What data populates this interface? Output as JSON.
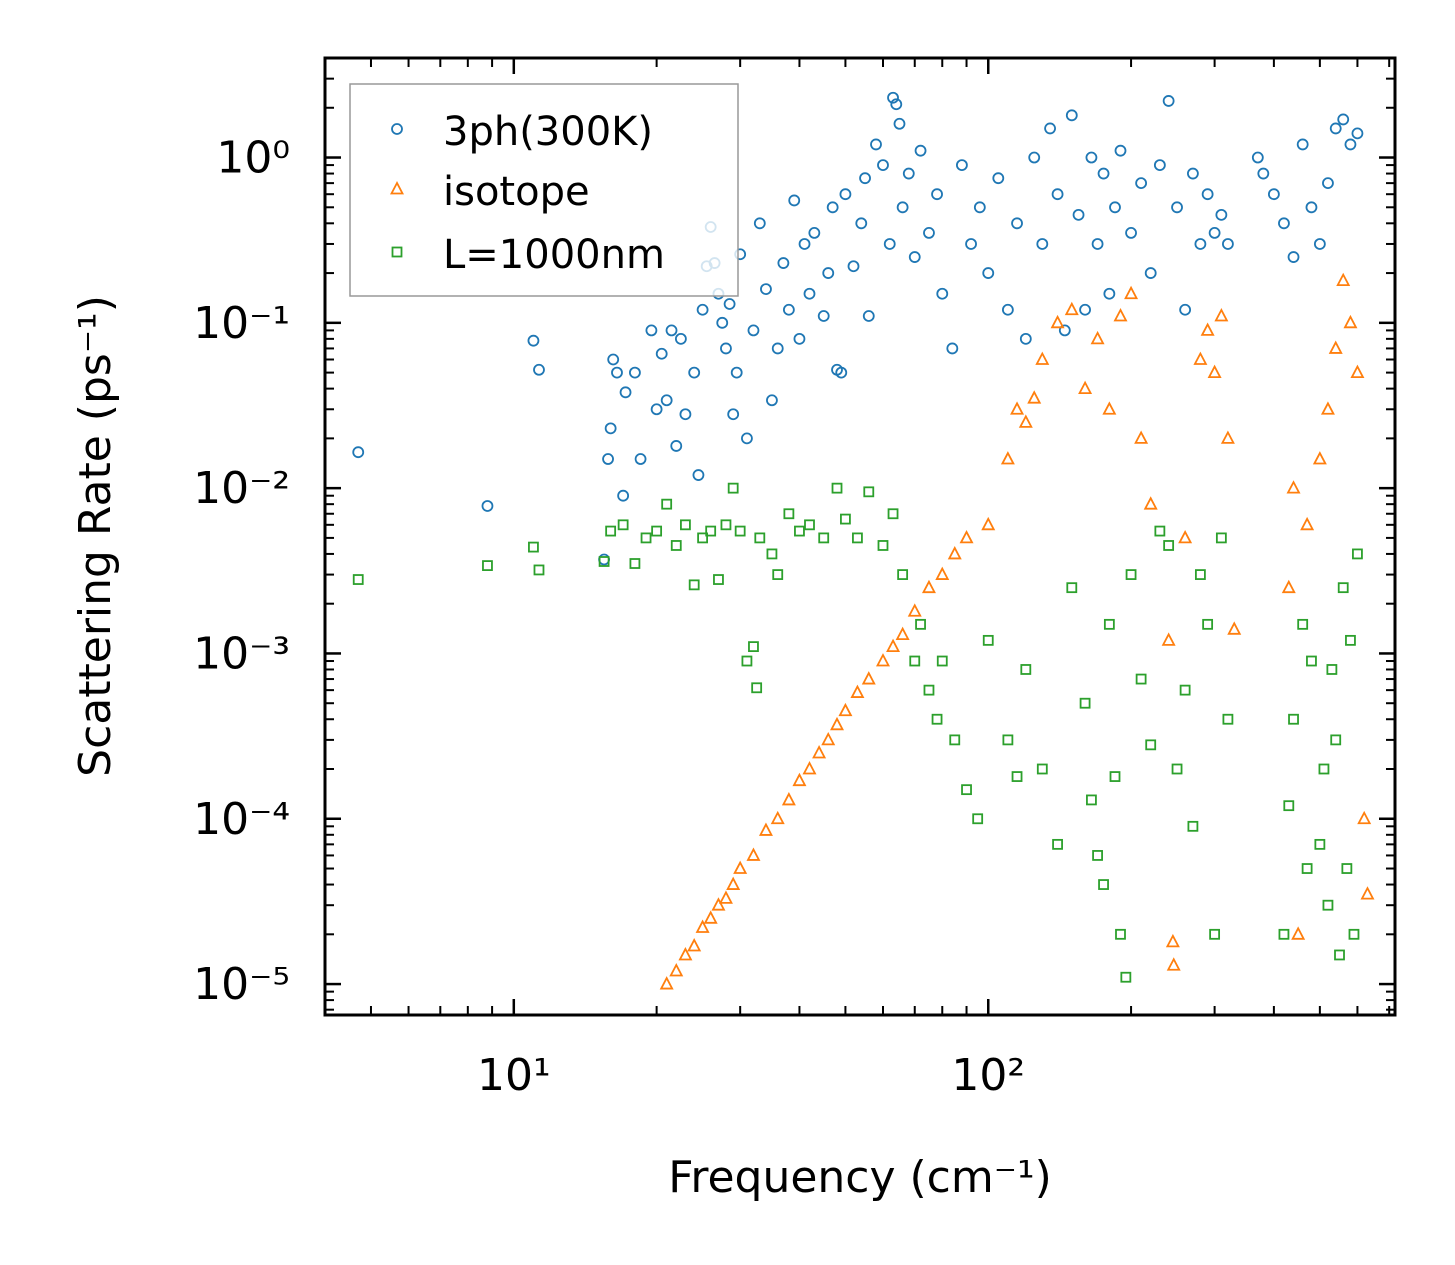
{
  "chart_data": {
    "type": "scatter",
    "xscale": "log",
    "yscale": "log",
    "xlim": [
      4,
      720
    ],
    "ylim": [
      6.5e-06,
      4.0
    ],
    "xlabel": "Frequency (cm⁻¹)",
    "ylabel": "Scattering Rate (ps⁻¹)",
    "x_ticks": [
      {
        "value": 10,
        "label": "10¹"
      },
      {
        "value": 100,
        "label": "10²"
      }
    ],
    "y_ticks": [
      {
        "value": 1,
        "label": "10⁰"
      },
      {
        "value": 0.1,
        "label": "10⁻¹"
      },
      {
        "value": 0.01,
        "label": "10⁻²"
      },
      {
        "value": 0.001,
        "label": "10⁻³"
      },
      {
        "value": 0.0001,
        "label": "10⁻⁴"
      },
      {
        "value": 1e-05,
        "label": "10⁻⁵"
      }
    ],
    "legend_position": "top-left",
    "series": [
      {
        "name": "3ph(300K)",
        "marker": "circle",
        "color": "#1f77b4",
        "points": [
          [
            4.7,
            0.0165
          ],
          [
            8.8,
            0.0078
          ],
          [
            11,
            0.078
          ],
          [
            11.3,
            0.052
          ],
          [
            15.5,
            0.0037
          ],
          [
            15.8,
            0.015
          ],
          [
            16,
            0.023
          ],
          [
            16.2,
            0.06
          ],
          [
            16.5,
            0.05
          ],
          [
            17,
            0.009
          ],
          [
            17.2,
            0.038
          ],
          [
            18,
            0.05
          ],
          [
            18.5,
            0.015
          ],
          [
            19.5,
            0.09
          ],
          [
            20,
            0.03
          ],
          [
            20.5,
            0.065
          ],
          [
            21,
            0.034
          ],
          [
            21.5,
            0.09
          ],
          [
            22,
            0.018
          ],
          [
            22.5,
            0.08
          ],
          [
            23,
            0.028
          ],
          [
            24,
            0.05
          ],
          [
            24.5,
            0.012
          ],
          [
            25,
            0.12
          ],
          [
            25.5,
            0.22
          ],
          [
            26,
            0.38
          ],
          [
            26.5,
            0.23
          ],
          [
            27,
            0.15
          ],
          [
            27.5,
            0.1
          ],
          [
            28,
            0.07
          ],
          [
            28.5,
            0.13
          ],
          [
            29,
            0.028
          ],
          [
            29.5,
            0.05
          ],
          [
            30,
            0.26
          ],
          [
            31,
            0.02
          ],
          [
            32,
            0.09
          ],
          [
            33,
            0.4
          ],
          [
            34,
            0.16
          ],
          [
            35,
            0.034
          ],
          [
            36,
            0.07
          ],
          [
            37,
            0.23
          ],
          [
            38,
            0.12
          ],
          [
            39,
            0.55
          ],
          [
            40,
            0.08
          ],
          [
            41,
            0.3
          ],
          [
            42,
            0.15
          ],
          [
            43,
            0.35
          ],
          [
            45,
            0.11
          ],
          [
            46,
            0.2
          ],
          [
            47,
            0.5
          ],
          [
            48,
            0.052
          ],
          [
            49,
            0.05
          ],
          [
            50,
            0.6
          ],
          [
            52,
            0.22
          ],
          [
            54,
            0.4
          ],
          [
            55,
            0.75
          ],
          [
            56,
            0.11
          ],
          [
            58,
            1.2
          ],
          [
            60,
            0.9
          ],
          [
            62,
            0.3
          ],
          [
            63,
            2.3
          ],
          [
            64,
            2.1
          ],
          [
            65,
            1.6
          ],
          [
            66,
            0.5
          ],
          [
            68,
            0.8
          ],
          [
            70,
            0.25
          ],
          [
            72,
            1.1
          ],
          [
            75,
            0.35
          ],
          [
            78,
            0.6
          ],
          [
            80,
            0.15
          ],
          [
            84,
            0.07
          ],
          [
            88,
            0.9
          ],
          [
            92,
            0.3
          ],
          [
            96,
            0.5
          ],
          [
            100,
            0.2
          ],
          [
            105,
            0.75
          ],
          [
            110,
            0.12
          ],
          [
            115,
            0.4
          ],
          [
            120,
            0.08
          ],
          [
            125,
            1.0
          ],
          [
            130,
            0.3
          ],
          [
            135,
            1.5
          ],
          [
            140,
            0.6
          ],
          [
            145,
            0.09
          ],
          [
            150,
            1.8
          ],
          [
            155,
            0.45
          ],
          [
            160,
            0.12
          ],
          [
            165,
            1.0
          ],
          [
            170,
            0.3
          ],
          [
            175,
            0.8
          ],
          [
            180,
            0.15
          ],
          [
            185,
            0.5
          ],
          [
            190,
            1.1
          ],
          [
            200,
            0.35
          ],
          [
            210,
            0.7
          ],
          [
            220,
            0.2
          ],
          [
            230,
            0.9
          ],
          [
            240,
            2.2
          ],
          [
            250,
            0.5
          ],
          [
            260,
            0.12
          ],
          [
            270,
            0.8
          ],
          [
            280,
            0.3
          ],
          [
            290,
            0.6
          ],
          [
            300,
            0.35
          ],
          [
            310,
            0.45
          ],
          [
            320,
            0.3
          ],
          [
            370,
            1.0
          ],
          [
            380,
            0.8
          ],
          [
            400,
            0.6
          ],
          [
            420,
            0.4
          ],
          [
            440,
            0.25
          ],
          [
            460,
            1.2
          ],
          [
            480,
            0.5
          ],
          [
            500,
            0.3
          ],
          [
            520,
            0.7
          ],
          [
            540,
            1.5
          ],
          [
            560,
            1.7
          ],
          [
            580,
            1.2
          ],
          [
            600,
            1.4
          ]
        ]
      },
      {
        "name": "isotope",
        "marker": "triangle",
        "color": "#ff7f0e",
        "points": [
          [
            21,
            1e-05
          ],
          [
            22,
            1.2e-05
          ],
          [
            23,
            1.5e-05
          ],
          [
            24,
            1.7e-05
          ],
          [
            25,
            2.2e-05
          ],
          [
            26,
            2.5e-05
          ],
          [
            27,
            3e-05
          ],
          [
            28,
            3.3e-05
          ],
          [
            29,
            4e-05
          ],
          [
            30,
            5e-05
          ],
          [
            32,
            6e-05
          ],
          [
            34,
            8.5e-05
          ],
          [
            36,
            0.0001
          ],
          [
            38,
            0.00013
          ],
          [
            40,
            0.00017
          ],
          [
            42,
            0.0002
          ],
          [
            44,
            0.00025
          ],
          [
            46,
            0.0003
          ],
          [
            48,
            0.00037
          ],
          [
            50,
            0.00045
          ],
          [
            53,
            0.00058
          ],
          [
            56,
            0.0007
          ],
          [
            60,
            0.0009
          ],
          [
            63,
            0.0011
          ],
          [
            66,
            0.0013
          ],
          [
            70,
            0.0018
          ],
          [
            75,
            0.0025
          ],
          [
            80,
            0.003
          ],
          [
            85,
            0.004
          ],
          [
            90,
            0.005
          ],
          [
            100,
            0.006
          ],
          [
            110,
            0.015
          ],
          [
            115,
            0.03
          ],
          [
            120,
            0.025
          ],
          [
            125,
            0.035
          ],
          [
            130,
            0.06
          ],
          [
            140,
            0.1
          ],
          [
            150,
            0.12
          ],
          [
            160,
            0.04
          ],
          [
            170,
            0.08
          ],
          [
            180,
            0.03
          ],
          [
            190,
            0.11
          ],
          [
            200,
            0.15
          ],
          [
            210,
            0.02
          ],
          [
            220,
            0.008
          ],
          [
            240,
            0.0012
          ],
          [
            245,
            1.8e-05
          ],
          [
            246,
            1.3e-05
          ],
          [
            260,
            0.005
          ],
          [
            280,
            0.06
          ],
          [
            290,
            0.09
          ],
          [
            300,
            0.05
          ],
          [
            310,
            0.11
          ],
          [
            320,
            0.02
          ],
          [
            330,
            0.0014
          ],
          [
            430,
            0.0025
          ],
          [
            440,
            0.01
          ],
          [
            450,
            2e-05
          ],
          [
            470,
            0.006
          ],
          [
            500,
            0.015
          ],
          [
            520,
            0.03
          ],
          [
            540,
            0.07
          ],
          [
            560,
            0.18
          ],
          [
            580,
            0.1
          ],
          [
            600,
            0.05
          ],
          [
            620,
            0.0001
          ],
          [
            630,
            3.5e-05
          ]
        ]
      },
      {
        "name": "L=1000nm",
        "marker": "square",
        "color": "#2ca02c",
        "points": [
          [
            4.7,
            0.0028
          ],
          [
            8.8,
            0.0034
          ],
          [
            11,
            0.0044
          ],
          [
            11.3,
            0.0032
          ],
          [
            15.5,
            0.0036
          ],
          [
            16,
            0.0055
          ],
          [
            17,
            0.006
          ],
          [
            18,
            0.0035
          ],
          [
            19,
            0.005
          ],
          [
            20,
            0.0055
          ],
          [
            21,
            0.008
          ],
          [
            22,
            0.0045
          ],
          [
            23,
            0.006
          ],
          [
            24,
            0.0026
          ],
          [
            25,
            0.005
          ],
          [
            26,
            0.0055
          ],
          [
            27,
            0.0028
          ],
          [
            28,
            0.006
          ],
          [
            29,
            0.01
          ],
          [
            30,
            0.0055
          ],
          [
            31,
            0.0009
          ],
          [
            32,
            0.0011
          ],
          [
            32.5,
            0.00062
          ],
          [
            33,
            0.005
          ],
          [
            35,
            0.004
          ],
          [
            36,
            0.003
          ],
          [
            38,
            0.007
          ],
          [
            40,
            0.0055
          ],
          [
            42,
            0.006
          ],
          [
            45,
            0.005
          ],
          [
            48,
            0.01
          ],
          [
            50,
            0.0065
          ],
          [
            53,
            0.005
          ],
          [
            56,
            0.0095
          ],
          [
            60,
            0.0045
          ],
          [
            63,
            0.007
          ],
          [
            66,
            0.003
          ],
          [
            70,
            0.0009
          ],
          [
            72,
            0.0015
          ],
          [
            75,
            0.0006
          ],
          [
            78,
            0.0004
          ],
          [
            80,
            0.0009
          ],
          [
            85,
            0.0003
          ],
          [
            90,
            0.00015
          ],
          [
            95,
            0.0001
          ],
          [
            100,
            0.0012
          ],
          [
            110,
            0.0003
          ],
          [
            115,
            0.00018
          ],
          [
            120,
            0.0008
          ],
          [
            130,
            0.0002
          ],
          [
            140,
            7e-05
          ],
          [
            150,
            0.0025
          ],
          [
            160,
            0.0005
          ],
          [
            165,
            0.00013
          ],
          [
            170,
            6e-05
          ],
          [
            175,
            4e-05
          ],
          [
            180,
            0.0015
          ],
          [
            185,
            0.00018
          ],
          [
            190,
            2e-05
          ],
          [
            195,
            1.1e-05
          ],
          [
            200,
            0.003
          ],
          [
            210,
            0.0007
          ],
          [
            220,
            0.00028
          ],
          [
            230,
            0.0055
          ],
          [
            240,
            0.0045
          ],
          [
            250,
            0.0002
          ],
          [
            260,
            0.0006
          ],
          [
            270,
            9e-05
          ],
          [
            280,
            0.003
          ],
          [
            290,
            0.0015
          ],
          [
            300,
            2e-05
          ],
          [
            310,
            0.005
          ],
          [
            320,
            0.0004
          ],
          [
            420,
            2e-05
          ],
          [
            430,
            0.00012
          ],
          [
            440,
            0.0004
          ],
          [
            460,
            0.0015
          ],
          [
            470,
            5e-05
          ],
          [
            480,
            0.0009
          ],
          [
            500,
            7e-05
          ],
          [
            510,
            0.0002
          ],
          [
            520,
            3e-05
          ],
          [
            530,
            0.0008
          ],
          [
            540,
            0.0003
          ],
          [
            550,
            1.5e-05
          ],
          [
            560,
            0.0025
          ],
          [
            570,
            5e-05
          ],
          [
            580,
            0.0012
          ],
          [
            590,
            2e-05
          ],
          [
            600,
            0.004
          ]
        ]
      }
    ]
  }
}
